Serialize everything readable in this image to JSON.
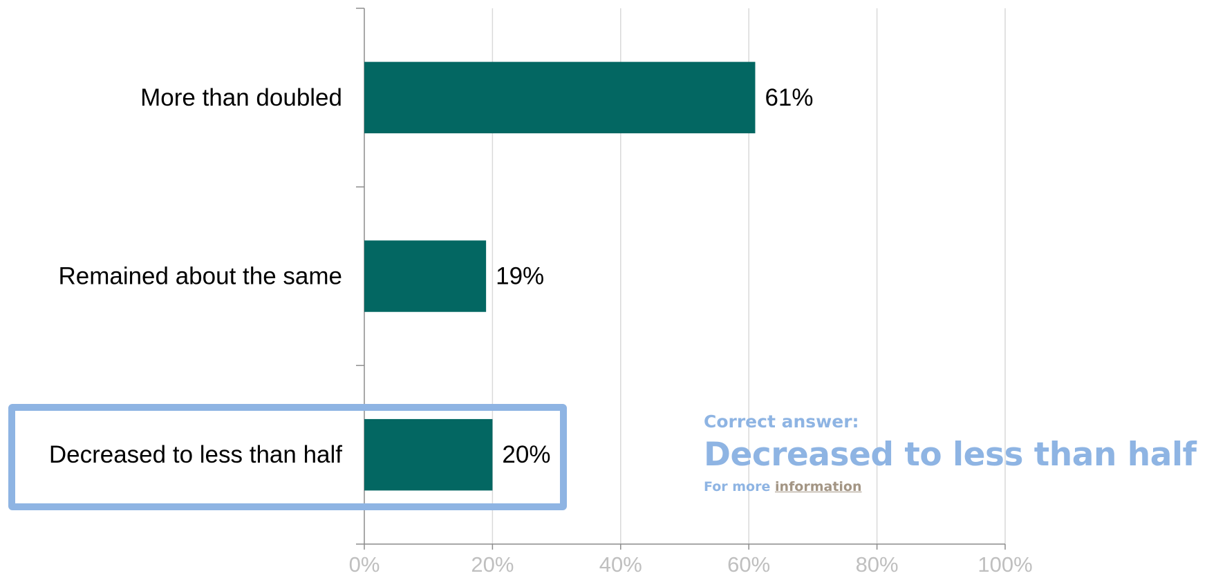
{
  "chart_data": {
    "type": "bar",
    "orientation": "horizontal",
    "categories": [
      "More than doubled",
      "Remained about the same",
      "Decreased to less than half"
    ],
    "values": [
      61,
      19,
      20
    ],
    "data_labels": [
      "61%",
      "19%",
      "20%"
    ],
    "xlim": [
      0,
      100
    ],
    "x_ticks": [
      0,
      20,
      40,
      60,
      80,
      100
    ],
    "x_tick_labels": [
      "0%",
      "20%",
      "40%",
      "60%",
      "80%",
      "100%"
    ],
    "grid": "vertical",
    "bar_color": "#036762",
    "highlighted_category": "Decreased to less than half"
  },
  "answer": {
    "intro": "Correct answer:",
    "text": "Decreased to less than half",
    "more_prefix": "For more",
    "link_text": "information",
    "color": "#8eb4e3",
    "link_color": "#a39584"
  }
}
